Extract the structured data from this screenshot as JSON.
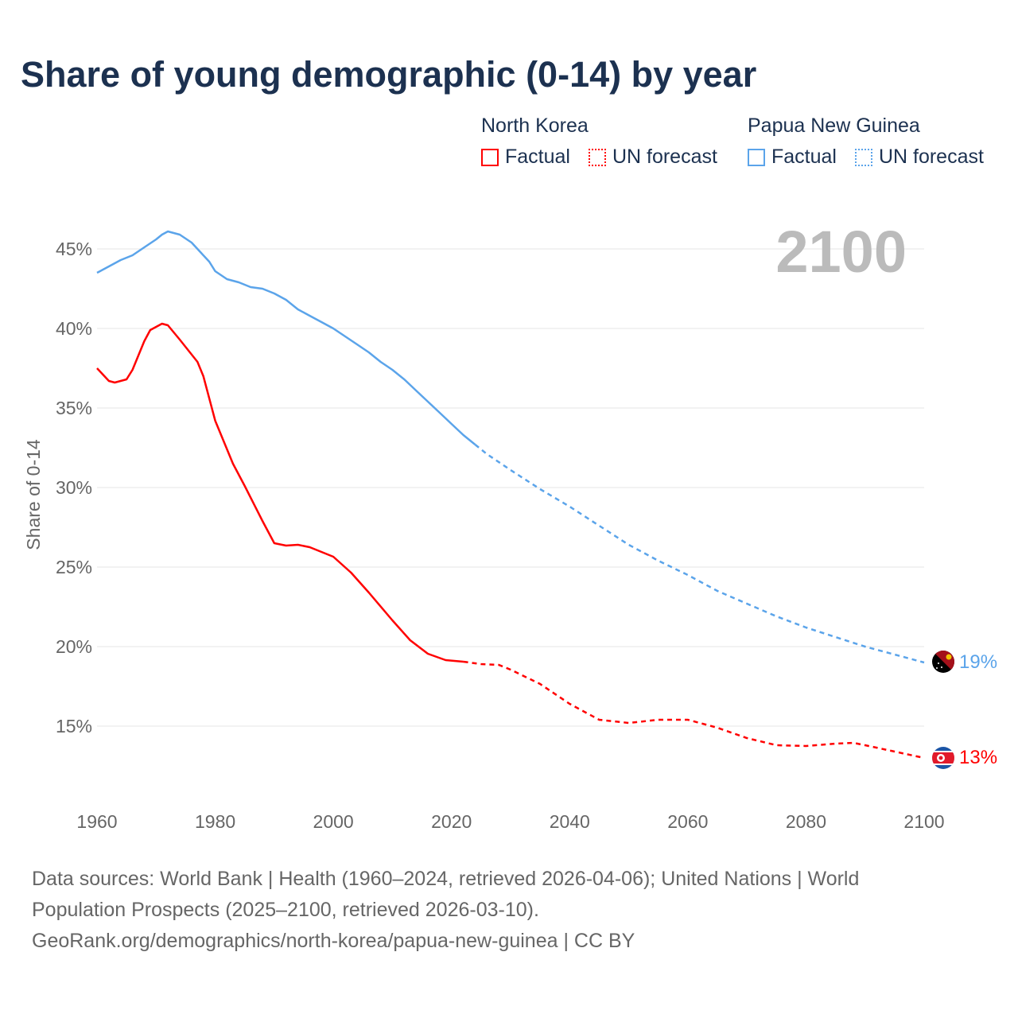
{
  "title": "Share of young demographic (0-14) by year",
  "legend": [
    {
      "group": "North Korea",
      "color": "#ff0000",
      "factual_label": "Factual",
      "forecast_label": "UN forecast"
    },
    {
      "group": "Papua New Guinea",
      "color": "#5ba4ea",
      "factual_label": "Factual",
      "forecast_label": "UN forecast"
    }
  ],
  "year_label": "2100",
  "end_labels": {
    "png": "19%",
    "nk": "13%"
  },
  "footer": {
    "line1": "Data sources: World Bank | Health (1960–2024, retrieved 2026-04-06); United Nations | World Population Prospects (2025–2100, retrieved 2026-03-10).",
    "line2": "GeoRank.org/demographics/north-korea/papua-new-guinea | CC BY"
  },
  "chart_data": {
    "type": "line",
    "title": "Share of young demographic (0-14) by year",
    "xlabel": "",
    "ylabel": "Share of 0-14",
    "xlim": [
      1960,
      2100
    ],
    "ylim": [
      10.5,
      47
    ],
    "xticks": [
      1960,
      1980,
      2000,
      2020,
      2040,
      2060,
      2080,
      2100
    ],
    "yticks": [
      15,
      20,
      25,
      30,
      35,
      40,
      45
    ],
    "ytick_labels": [
      "15%",
      "20%",
      "25%",
      "30%",
      "35%",
      "40%",
      "45%"
    ],
    "factual_end": 2024,
    "series": [
      {
        "name": "Papua New Guinea",
        "color": "#5ba4ea",
        "x": [
          1960,
          1962,
          1964,
          1966,
          1968,
          1970,
          1971,
          1972,
          1974,
          1976,
          1977,
          1979,
          1980,
          1982,
          1984,
          1986,
          1988,
          1990,
          1992,
          1994,
          1996,
          1998,
          2000,
          2002,
          2004,
          2006,
          2008,
          2010,
          2012,
          2014,
          2016,
          2018,
          2020,
          2022,
          2024,
          2026,
          2030,
          2035,
          2040,
          2045,
          2050,
          2055,
          2060,
          2065,
          2070,
          2075,
          2080,
          2085,
          2090,
          2095,
          2100
        ],
        "y": [
          43.5,
          43.9,
          44.3,
          44.6,
          45.1,
          45.6,
          45.9,
          46.1,
          45.9,
          45.4,
          45.0,
          44.2,
          43.6,
          43.1,
          42.9,
          42.6,
          42.5,
          42.2,
          41.8,
          41.2,
          40.8,
          40.4,
          40.0,
          39.5,
          39.0,
          38.5,
          37.9,
          37.4,
          36.8,
          36.1,
          35.4,
          34.7,
          34.0,
          33.3,
          32.7,
          32.1,
          31.1,
          29.9,
          28.8,
          27.6,
          26.4,
          25.4,
          24.5,
          23.5,
          22.7,
          21.9,
          21.2,
          20.6,
          20.0,
          19.5,
          19.0
        ]
      },
      {
        "name": "North Korea",
        "color": "#ff0000",
        "x": [
          1960,
          1962,
          1963,
          1965,
          1966,
          1968,
          1969,
          1971,
          1972,
          1974,
          1977,
          1978,
          1980,
          1983,
          1985,
          1988,
          1990,
          1992,
          1994,
          1996,
          2000,
          2003,
          2006,
          2010,
          2013,
          2016,
          2019,
          2022,
          2025,
          2028,
          2030,
          2035,
          2040,
          2045,
          2050,
          2055,
          2060,
          2065,
          2070,
          2075,
          2080,
          2085,
          2088,
          2090,
          2095,
          2100
        ],
        "y": [
          37.5,
          36.7,
          36.6,
          36.8,
          37.4,
          39.2,
          39.9,
          40.3,
          40.2,
          39.3,
          37.9,
          37.0,
          34.2,
          31.5,
          30.1,
          27.9,
          26.5,
          26.35,
          26.4,
          26.25,
          25.65,
          24.65,
          23.4,
          21.65,
          20.4,
          19.55,
          19.15,
          19.05,
          18.9,
          18.85,
          18.55,
          17.65,
          16.4,
          15.4,
          15.2,
          15.4,
          15.4,
          14.9,
          14.25,
          13.8,
          13.75,
          13.9,
          13.95,
          13.8,
          13.4,
          13.0
        ]
      }
    ]
  }
}
